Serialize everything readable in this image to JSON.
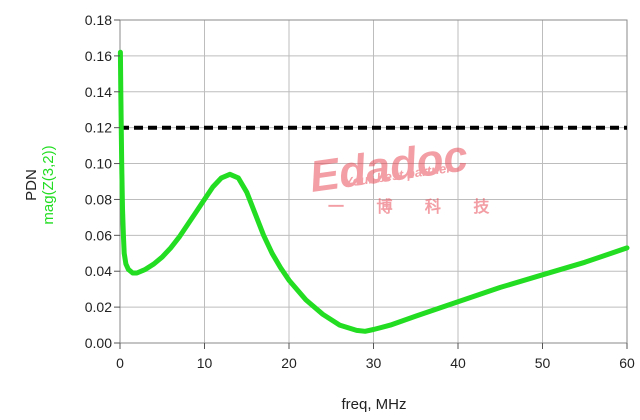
{
  "chart_data": {
    "type": "line",
    "xlabel": "freq, MHz",
    "ylabel": "PDN",
    "x_ticks": [
      "0",
      "10",
      "20",
      "30",
      "40",
      "50",
      "60"
    ],
    "y_ticks": [
      "0.00",
      "0.02",
      "0.04",
      "0.06",
      "0.08",
      "0.10",
      "0.12",
      "0.14",
      "0.16",
      "0.18"
    ],
    "xlim": [
      0,
      60
    ],
    "ylim": [
      0,
      0.18
    ],
    "grid": true,
    "series": [
      {
        "name": "mag(Z(3,2))",
        "color": "#22dd22",
        "style": "solid",
        "x": [
          0.05,
          0.1,
          0.2,
          0.3,
          0.4,
          0.5,
          0.7,
          1.0,
          1.5,
          2,
          3,
          4,
          5,
          6,
          7,
          8,
          9,
          10,
          11,
          12,
          13,
          14,
          15,
          16,
          17,
          18,
          19,
          20,
          22,
          24,
          26,
          28,
          29,
          30,
          32,
          35,
          40,
          45,
          50,
          55,
          60
        ],
        "y": [
          0.162,
          0.14,
          0.1,
          0.075,
          0.06,
          0.05,
          0.044,
          0.041,
          0.039,
          0.039,
          0.041,
          0.044,
          0.048,
          0.053,
          0.059,
          0.066,
          0.073,
          0.08,
          0.087,
          0.092,
          0.094,
          0.092,
          0.084,
          0.072,
          0.06,
          0.05,
          0.042,
          0.035,
          0.024,
          0.016,
          0.01,
          0.007,
          0.0065,
          0.0075,
          0.01,
          0.015,
          0.023,
          0.031,
          0.038,
          0.045,
          0.053
        ]
      },
      {
        "name": "",
        "color": "#000000",
        "style": "dashed",
        "x": [
          0,
          60
        ],
        "y": [
          0.12,
          0.12
        ]
      }
    ]
  },
  "watermark": {
    "brand": "Edadoc",
    "tagline": "Your best partner",
    "chinese": "一 博 科 技",
    "color": "#e8505b"
  }
}
